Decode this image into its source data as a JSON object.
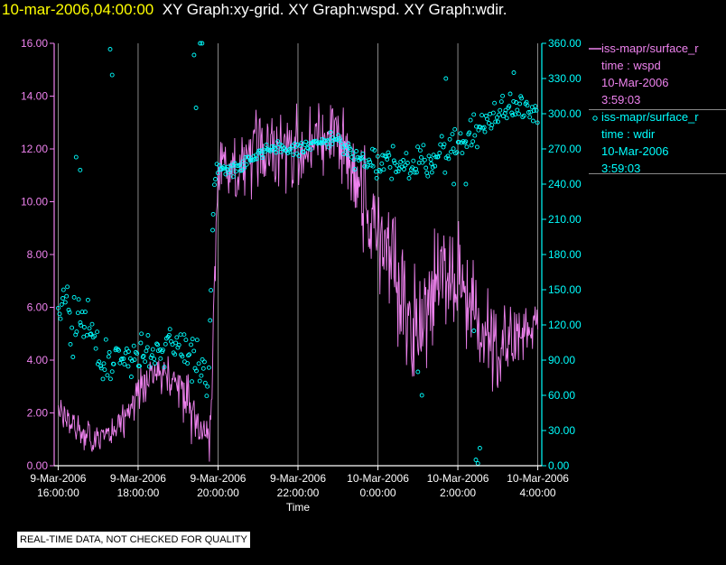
{
  "header": {
    "timestamp": "10-mar-2006,04:00:00",
    "graph_names": "XY Graph:xy-grid.  XY Graph:wspd.  XY Graph:wdir."
  },
  "legend": {
    "entries": [
      {
        "series": "iss-mapr/surface_r",
        "time_label": "time : wspd",
        "date": "10-Mar-2006",
        "clock": "3:59:03",
        "symbol": "line",
        "color": "#ee82ee"
      },
      {
        "series": "iss-mapr/surface_r",
        "time_label": "time : wdir",
        "date": "10-Mar-2006",
        "clock": "3:59:03",
        "symbol": "circle",
        "color": "#00ffff"
      }
    ]
  },
  "footer": {
    "note": "REAL-TIME DATA, NOT CHECKED FOR QUALITY"
  },
  "colors": {
    "wspd": "#ee82ee",
    "wdir": "#00ffff",
    "grid": "#aaaaaa",
    "title": "#ffff00"
  },
  "chart_data": {
    "type": "line",
    "xlabel": "Time",
    "x_tick_labels": [
      [
        "9-Mar-2006",
        "16:00:00"
      ],
      [
        "9-Mar-2006",
        "18:00:00"
      ],
      [
        "9-Mar-2006",
        "20:00:00"
      ],
      [
        "9-Mar-2006",
        "22:00:00"
      ],
      [
        "10-Mar-2006",
        "0:00:00"
      ],
      [
        "10-Mar-2006",
        "2:00:00"
      ],
      [
        "10-Mar-2006",
        "4:00:00"
      ]
    ],
    "x_tick_hours": [
      16,
      18,
      20,
      22,
      24,
      26,
      28
    ],
    "xlim_hours": [
      15.9,
      28.1
    ],
    "left_axis": {
      "ylim": [
        0,
        16
      ],
      "ticks": [
        "0.00",
        "2.00",
        "4.00",
        "6.00",
        "8.00",
        "10.00",
        "12.00",
        "14.00",
        "16.00"
      ]
    },
    "right_axis": {
      "ylim": [
        0,
        360
      ],
      "ticks": [
        "0.00",
        "30.00",
        "60.00",
        "90.00",
        "120.00",
        "150.00",
        "180.00",
        "210.00",
        "240.00",
        "270.00",
        "300.00",
        "330.00",
        "360.00"
      ]
    },
    "grid": "vertical",
    "series": [
      {
        "name": "wspd",
        "axis": "left",
        "style": "line",
        "points": [
          [
            16.0,
            2.2
          ],
          [
            16.5,
            1.2
          ],
          [
            17.0,
            1.0
          ],
          [
            17.5,
            1.4
          ],
          [
            18.0,
            2.8
          ],
          [
            18.5,
            3.6
          ],
          [
            19.0,
            3.2
          ],
          [
            19.5,
            1.5
          ],
          [
            19.8,
            1.0
          ],
          [
            20.0,
            11.0
          ],
          [
            20.5,
            11.0
          ],
          [
            21.0,
            12.0
          ],
          [
            21.5,
            12.0
          ],
          [
            22.0,
            12.0
          ],
          [
            22.5,
            12.3
          ],
          [
            23.0,
            12.5
          ],
          [
            23.5,
            10.5
          ],
          [
            24.0,
            9.0
          ],
          [
            24.5,
            7.0
          ],
          [
            25.0,
            5.0
          ],
          [
            25.5,
            7.5
          ],
          [
            26.0,
            7.0
          ],
          [
            26.5,
            5.5
          ],
          [
            27.0,
            4.5
          ],
          [
            27.5,
            5.0
          ],
          [
            28.0,
            5.2
          ]
        ],
        "variability": [
          [
            16.0,
            0.8
          ],
          [
            18.0,
            1.0
          ],
          [
            19.5,
            1.5
          ],
          [
            20.0,
            1.8
          ],
          [
            22.0,
            2.2
          ],
          [
            23.0,
            2.5
          ],
          [
            24.0,
            3.0
          ],
          [
            25.0,
            3.0
          ],
          [
            26.5,
            2.5
          ],
          [
            28.0,
            1.5
          ]
        ]
      },
      {
        "name": "wdir",
        "axis": "right",
        "style": "scatter",
        "points": [
          [
            16.0,
            130
          ],
          [
            16.5,
            130
          ],
          [
            17.0,
            95
          ],
          [
            17.5,
            90
          ],
          [
            18.0,
            95
          ],
          [
            18.5,
            100
          ],
          [
            19.0,
            105
          ],
          [
            19.5,
            95
          ],
          [
            19.75,
            60
          ],
          [
            19.9,
            250
          ],
          [
            20.5,
            255
          ],
          [
            21.0,
            265
          ],
          [
            21.5,
            270
          ],
          [
            22.0,
            270
          ],
          [
            22.5,
            275
          ],
          [
            23.0,
            278
          ],
          [
            23.5,
            260
          ],
          [
            24.0,
            255
          ],
          [
            24.5,
            260
          ],
          [
            25.0,
            255
          ],
          [
            25.5,
            265
          ],
          [
            26.0,
            275
          ],
          [
            26.5,
            285
          ],
          [
            27.0,
            300
          ],
          [
            27.5,
            310
          ],
          [
            28.0,
            300
          ]
        ],
        "spread": [
          [
            16.0,
            40
          ],
          [
            16.5,
            45
          ],
          [
            17.0,
            30
          ],
          [
            18.0,
            25
          ],
          [
            19.0,
            25
          ],
          [
            19.75,
            40
          ],
          [
            20.0,
            10
          ],
          [
            21.0,
            8
          ],
          [
            23.0,
            10
          ],
          [
            24.0,
            20
          ],
          [
            25.0,
            25
          ],
          [
            26.0,
            20
          ],
          [
            27.0,
            20
          ],
          [
            28.0,
            15
          ]
        ],
        "outliers": [
          [
            16.45,
            263
          ],
          [
            16.55,
            252
          ],
          [
            17.3,
            355
          ],
          [
            17.35,
            333
          ],
          [
            19.45,
            305
          ],
          [
            19.55,
            360
          ],
          [
            19.6,
            360
          ],
          [
            19.4,
            350
          ],
          [
            25.1,
            60
          ],
          [
            25.0,
            80
          ],
          [
            26.4,
            115
          ],
          [
            26.45,
            5
          ],
          [
            26.5,
            2
          ],
          [
            26.55,
            15
          ],
          [
            26.2,
            240
          ],
          [
            27.4,
            335
          ],
          [
            25.35,
            250
          ],
          [
            25.7,
            330
          ],
          [
            25.9,
            240
          ]
        ]
      }
    ]
  }
}
